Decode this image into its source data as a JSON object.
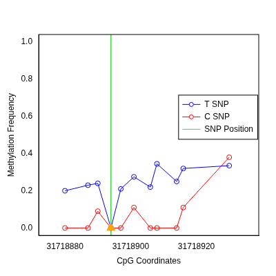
{
  "chart_data": {
    "type": "line",
    "x_label": "CpG Coordinates",
    "y_label": "Methylation Frequency",
    "xlim": [
      31718872,
      31718939
    ],
    "xticks": [
      31718880,
      31718900,
      31718920
    ],
    "ylim": [
      -0.04,
      1.04
    ],
    "yticks": [
      {
        "value": 0,
        "label": "0.0"
      },
      {
        "value": 0.2,
        "label": "0.2"
      },
      {
        "value": 0.4,
        "label": "0.4"
      },
      {
        "value": 0.6,
        "label": "0.6"
      },
      {
        "value": 0.8,
        "label": "0.8"
      },
      {
        "value": 1,
        "label": "1.0"
      }
    ],
    "grid": false,
    "legend": "right",
    "series": [
      {
        "name": "T SNP",
        "color": "#0000ff",
        "marker": "circle",
        "x": [
          31718880,
          31718887,
          31718890,
          31718894,
          31718897,
          31718901,
          31718906,
          31718908,
          31718914,
          31718916,
          31718930
        ],
        "values": [
          0.2,
          0.23,
          0.24,
          0.0,
          0.21,
          0.275,
          0.22,
          0.345,
          0.25,
          0.32,
          0.335
        ]
      },
      {
        "name": "C SNP",
        "color": "#ff0000",
        "marker": "circle",
        "x": [
          31718880,
          31718887,
          31718890,
          31718894,
          31718897,
          31718901,
          31718906,
          31718908,
          31718914,
          31718916,
          31718930
        ],
        "values": [
          0.0,
          0.0,
          0.09,
          0.0,
          0.0,
          0.11,
          0.0,
          0.0,
          0.0,
          0.11,
          0.38
        ]
      },
      {
        "name": "SNP Position",
        "color": "#33dd33",
        "type": "vline",
        "marker": "triangle",
        "x": [
          31718894
        ],
        "values": [
          0
        ]
      }
    ]
  }
}
